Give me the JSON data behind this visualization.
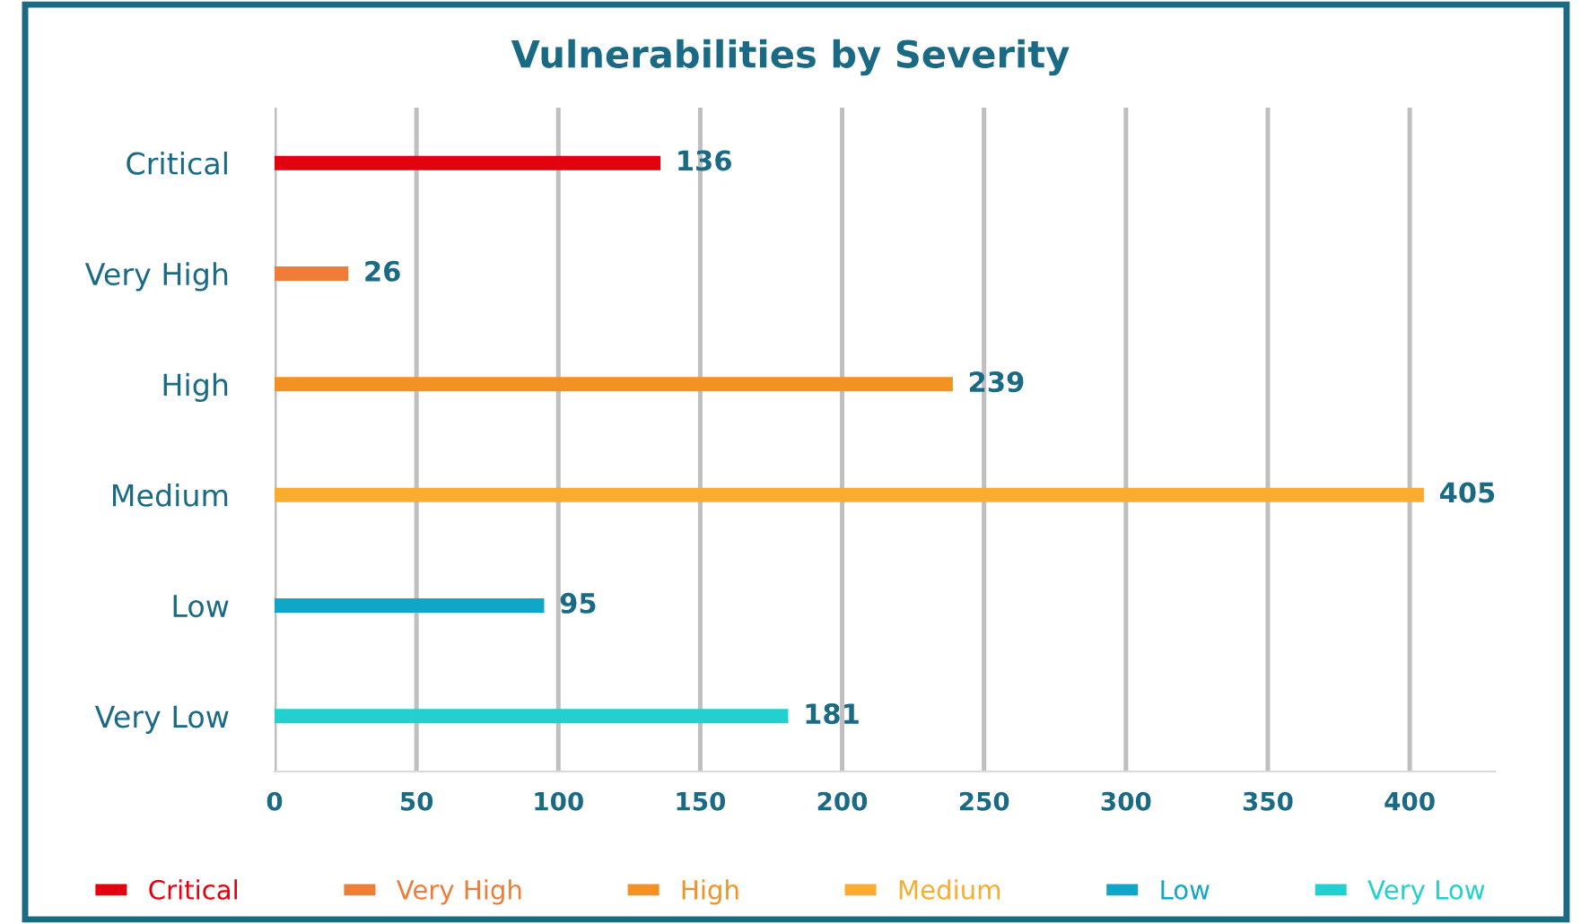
{
  "chart_data": {
    "type": "bar",
    "orientation": "horizontal",
    "title": "Vulnerabilities by Severity",
    "categories": [
      "Critical",
      "Very High",
      "High",
      "Medium",
      "Low",
      "Very Low"
    ],
    "series": [
      {
        "name": "Critical",
        "color": "#e3000f",
        "values": [
          136,
          null,
          null,
          null,
          null,
          null
        ]
      },
      {
        "name": "Very High",
        "color": "#ee7d3a",
        "values": [
          null,
          26,
          null,
          null,
          null,
          null
        ]
      },
      {
        "name": "High",
        "color": "#f39224",
        "values": [
          null,
          null,
          239,
          null,
          null,
          null
        ]
      },
      {
        "name": "Medium",
        "color": "#f9ac2e",
        "values": [
          null,
          null,
          null,
          405,
          null,
          null
        ]
      },
      {
        "name": "Low",
        "color": "#0fa6c8",
        "values": [
          null,
          null,
          null,
          null,
          95,
          null
        ]
      },
      {
        "name": "Very Low",
        "color": "#22d0d0",
        "values": [
          null,
          null,
          null,
          null,
          null,
          181
        ]
      }
    ],
    "xlim": [
      0,
      430
    ],
    "xticks": [
      0,
      50,
      100,
      150,
      200,
      250,
      300,
      350,
      400
    ],
    "grid": "x",
    "data_labels": true,
    "legend": "bottom"
  }
}
